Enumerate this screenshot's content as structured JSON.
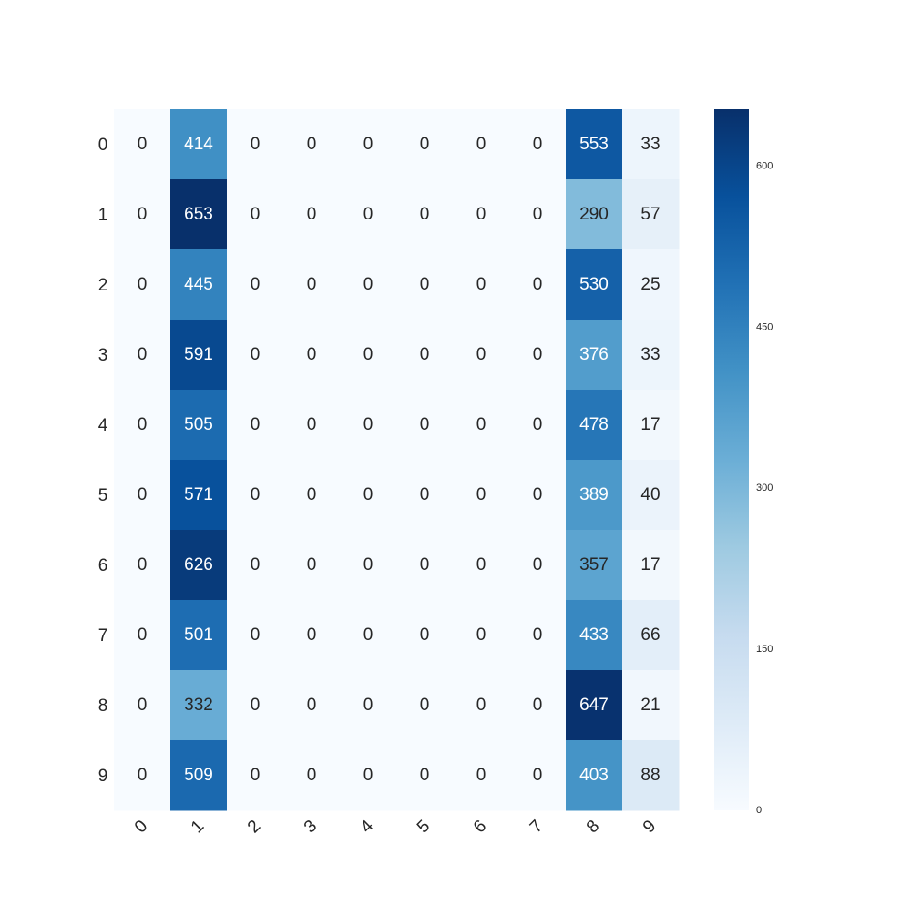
{
  "chart_data": {
    "type": "heatmap",
    "title": "",
    "xlabel": "",
    "ylabel": "",
    "x_tick_labels": [
      "0",
      "1",
      "2",
      "3",
      "4",
      "5",
      "6",
      "7",
      "8",
      "9"
    ],
    "y_tick_labels": [
      "0",
      "1",
      "2",
      "3",
      "4",
      "5",
      "6",
      "7",
      "8",
      "9"
    ],
    "values": [
      [
        0,
        414,
        0,
        0,
        0,
        0,
        0,
        0,
        553,
        33
      ],
      [
        0,
        653,
        0,
        0,
        0,
        0,
        0,
        0,
        290,
        57
      ],
      [
        0,
        445,
        0,
        0,
        0,
        0,
        0,
        0,
        530,
        25
      ],
      [
        0,
        591,
        0,
        0,
        0,
        0,
        0,
        0,
        376,
        33
      ],
      [
        0,
        505,
        0,
        0,
        0,
        0,
        0,
        0,
        478,
        17
      ],
      [
        0,
        571,
        0,
        0,
        0,
        0,
        0,
        0,
        389,
        40
      ],
      [
        0,
        626,
        0,
        0,
        0,
        0,
        0,
        0,
        357,
        17
      ],
      [
        0,
        501,
        0,
        0,
        0,
        0,
        0,
        0,
        433,
        66
      ],
      [
        0,
        332,
        0,
        0,
        0,
        0,
        0,
        0,
        647,
        21
      ],
      [
        0,
        509,
        0,
        0,
        0,
        0,
        0,
        0,
        403,
        88
      ]
    ],
    "colormap": "Blues",
    "vmin": 0,
    "vmax": 653,
    "colorbar": {
      "ticks": [
        0,
        150,
        300,
        450,
        600
      ],
      "tick_labels": [
        "0",
        "150",
        "300",
        "450",
        "600"
      ]
    },
    "grid": false,
    "x_tick_rotation_deg": 45
  }
}
